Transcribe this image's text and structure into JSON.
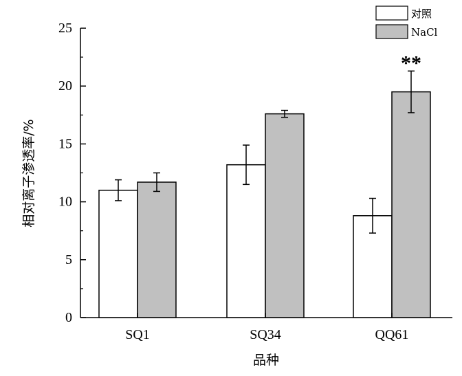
{
  "chart_data": {
    "type": "bar",
    "categories": [
      "SQ1",
      "SQ34",
      "QQ61"
    ],
    "series": [
      {
        "name": "对照",
        "color": "#ffffff",
        "values": [
          11.0,
          13.2,
          8.8
        ],
        "errors": [
          0.9,
          1.7,
          1.5
        ]
      },
      {
        "name": "NaCl",
        "color": "#c0c0c0",
        "values": [
          11.7,
          17.6,
          19.5
        ],
        "errors": [
          0.8,
          0.3,
          1.8
        ]
      }
    ],
    "annotations": [
      {
        "category": "QQ61",
        "series": "NaCl",
        "text": "**"
      }
    ],
    "xlabel": "品种",
    "ylabel": "相对离子渗透率/%",
    "ylim": [
      0,
      25
    ],
    "yticks": [
      0,
      5,
      10,
      15,
      20,
      25
    ],
    "grid": false,
    "legend_position": "top-right"
  }
}
